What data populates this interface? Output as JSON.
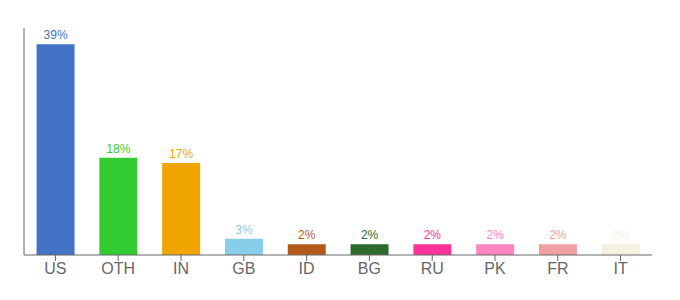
{
  "chart_data": {
    "type": "bar",
    "categories": [
      "US",
      "OTH",
      "IN",
      "GB",
      "ID",
      "BG",
      "RU",
      "PK",
      "FR",
      "IT"
    ],
    "values": [
      39,
      18,
      17,
      3,
      2,
      2,
      2,
      2,
      2,
      2
    ],
    "value_labels": [
      "39%",
      "18%",
      "17%",
      "3%",
      "2%",
      "2%",
      "2%",
      "2%",
      "2%",
      "2%"
    ],
    "data_labels": true,
    "colors": [
      "#4472c4",
      "#33cc33",
      "#f0a500",
      "#87ceeb",
      "#b35a1a",
      "#2d6a2d",
      "#ff3399",
      "#ff85c0",
      "#f0a0a0",
      "#f5f0e0"
    ],
    "ylim": [
      0,
      42
    ],
    "tick_labels": "x",
    "grid": false
  }
}
